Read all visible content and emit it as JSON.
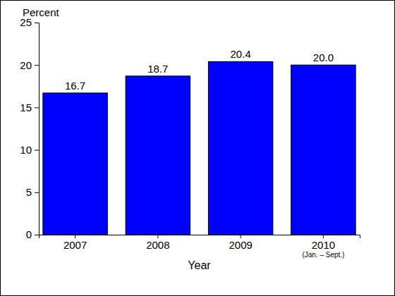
{
  "chart_data": {
    "type": "bar",
    "ylabel": "Percent",
    "xlabel": "Year",
    "categories": [
      "2007",
      "2008",
      "2009",
      "2010\n(Jan. – Sept.)"
    ],
    "values": [
      16.7,
      18.7,
      20.4,
      20.0
    ],
    "value_labels": [
      "16.7",
      "18.7",
      "20.4",
      "20.0"
    ],
    "data_labels": true,
    "color": "#0000ff",
    "ylim": [
      0,
      25
    ],
    "yticks": [
      0,
      5,
      10,
      15,
      20,
      25
    ],
    "grid": false
  }
}
